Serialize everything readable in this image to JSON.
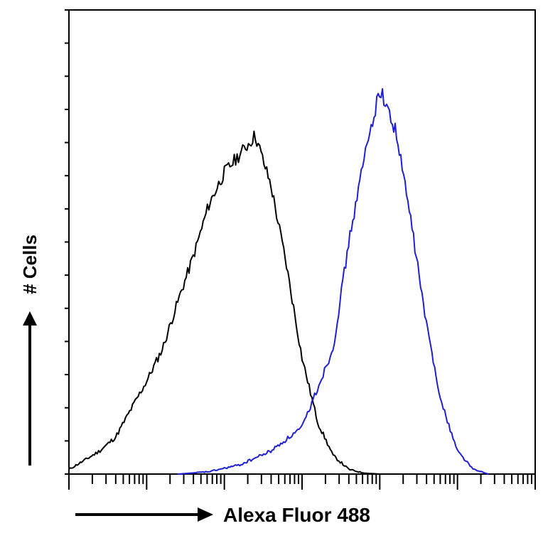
{
  "chart_data": {
    "type": "line",
    "title": "",
    "xlabel": "Alexa Fluor 488",
    "ylabel": "# Cells",
    "x_scale": "log",
    "xlim": [
      1,
      1000000
    ],
    "ylim": [
      0,
      1
    ],
    "grid": false,
    "legend": "none",
    "series": [
      {
        "color": "#000000",
        "x": [
          1,
          1.6,
          2.5,
          4,
          6.3,
          10,
          16,
          25,
          40,
          63,
          100,
          160,
          250,
          400,
          630,
          1000,
          1600,
          2500,
          4000,
          6300,
          10000
        ],
        "y": [
          0.01,
          0.03,
          0.05,
          0.08,
          0.14,
          0.2,
          0.27,
          0.37,
          0.47,
          0.58,
          0.65,
          0.69,
          0.73,
          0.62,
          0.45,
          0.25,
          0.11,
          0.04,
          0.01,
          0.002,
          0.0
        ]
      },
      {
        "color": "#1f1fd6",
        "x": [
          25,
          63,
          160,
          400,
          1000,
          2500,
          4000,
          6300,
          10000,
          16000,
          25000,
          40000,
          63000,
          100000,
          160000,
          250000
        ],
        "y": [
          0.0,
          0.005,
          0.02,
          0.05,
          0.1,
          0.27,
          0.5,
          0.68,
          0.83,
          0.74,
          0.55,
          0.32,
          0.15,
          0.05,
          0.01,
          0.0
        ]
      }
    ]
  }
}
